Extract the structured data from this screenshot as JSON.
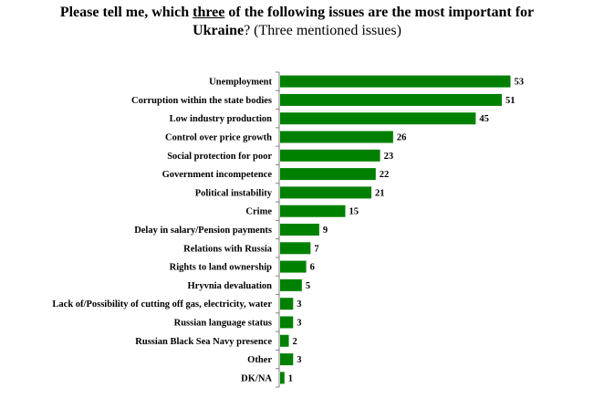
{
  "chart_data": {
    "type": "bar",
    "orientation": "horizontal",
    "title": {
      "part1": "Please tell me, which ",
      "emphasis": "three",
      "part2": " of the following issues are the most important for",
      "line2_bold": "Ukraine",
      "line2_normal": "? (Three mentioned issues)"
    },
    "categories": [
      "Unemployment",
      "Corruption within the state bodies",
      "Low industry production",
      "Control over price growth",
      "Social protection for poor",
      "Government incompetence",
      "Political instability",
      "Crime",
      "Delay in salary/Pension payments",
      "Relations with Russia",
      "Rights to land ownership",
      "Hryvnia devaluation",
      "Lack of/Possibility of cutting off gas, electricity, water",
      "Russian language status",
      "Russian Black Sea Navy presence",
      "Other",
      "DK/NA"
    ],
    "values": [
      53,
      51,
      45,
      26,
      23,
      22,
      21,
      15,
      9,
      7,
      6,
      5,
      3,
      3,
      2,
      3,
      1
    ],
    "xlim": [
      0,
      55
    ],
    "grid": false,
    "legend": "none",
    "bar_color": "#008000",
    "axis_color": "#808080"
  }
}
